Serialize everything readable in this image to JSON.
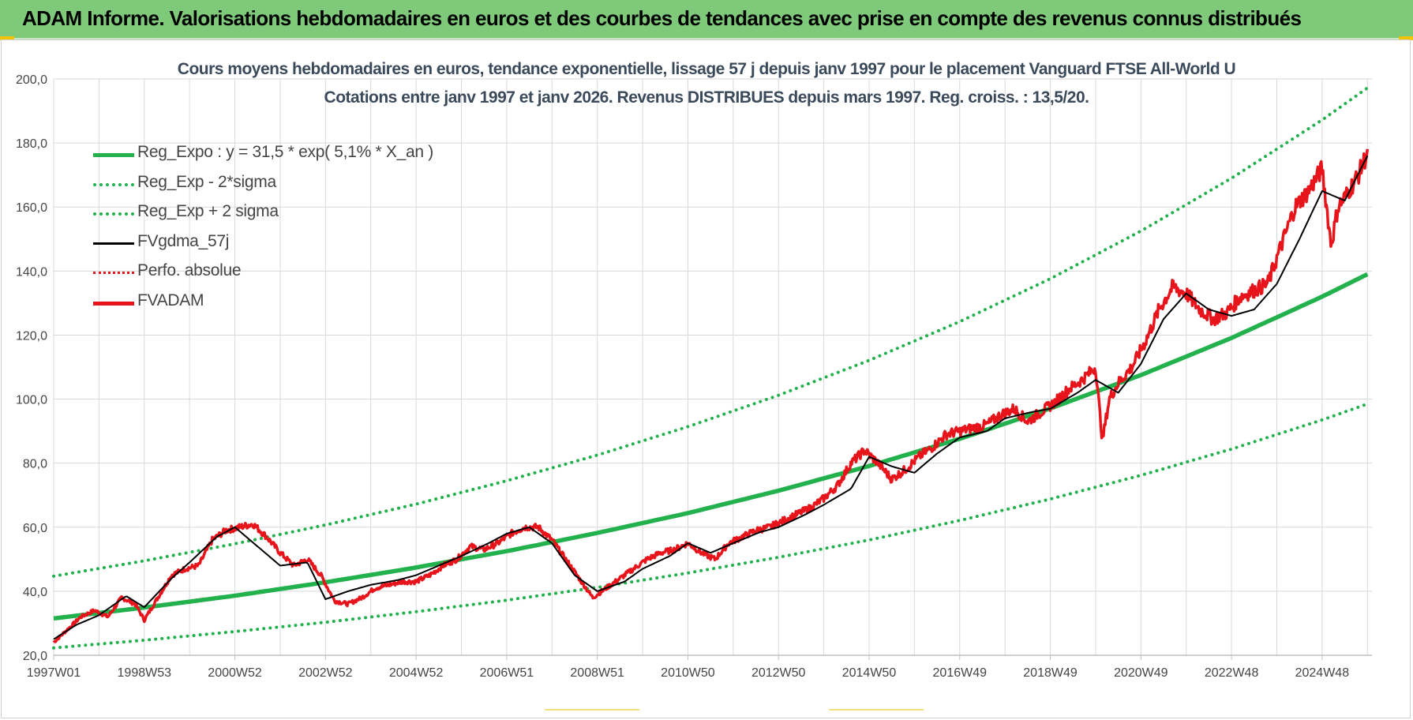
{
  "banner": {
    "title": "ADAM Informe. Valorisations hebdomadaires en euros et des courbes de tendances avec prise en compte des revenus connus distribués"
  },
  "colors": {
    "banner_bg": "#7fc97a",
    "trend_green": "#22b14c",
    "fvadam_red": "#e8141b",
    "fvgdma_black": "#000000",
    "perfo_red": "#e8141b",
    "grid": "#d9d9d9",
    "axis_text": "#444444"
  },
  "chart_data": {
    "type": "line",
    "title_line1": "Cours moyens hebdomadaires en euros, tendance exponentielle, lissage 57 j depuis janv 1997 pour le placement Vanguard FTSE All-World U",
    "title_line2": "Cotations entre janv 1997 et janv 2026. Revenus DISTRIBUES depuis mars 1997. Reg. croiss. : 13,5/20.",
    "xlabel": "",
    "ylabel": "",
    "x_range": [
      1997.0,
      2026.1
    ],
    "ylim": [
      20,
      200
    ],
    "y_ticks": [
      "20,0",
      "40,0",
      "60,0",
      "80,0",
      "100,0",
      "120,0",
      "140,0",
      "160,0",
      "180,0",
      "200,0"
    ],
    "x_ticks": [
      {
        "label": "1997W01",
        "t": 1997.0
      },
      {
        "label": "1998W53",
        "t": 1999.0
      },
      {
        "label": "2000W52",
        "t": 2001.0
      },
      {
        "label": "2002W52",
        "t": 2003.0
      },
      {
        "label": "2004W52",
        "t": 2005.0
      },
      {
        "label": "2006W51",
        "t": 2007.0
      },
      {
        "label": "2008W51",
        "t": 2009.0
      },
      {
        "label": "2010W50",
        "t": 2011.0
      },
      {
        "label": "2012W50",
        "t": 2013.0
      },
      {
        "label": "2014W50",
        "t": 2015.0
      },
      {
        "label": "2016W49",
        "t": 2017.0
      },
      {
        "label": "2018W49",
        "t": 2019.0
      },
      {
        "label": "2020W49",
        "t": 2021.0
      },
      {
        "label": "2022W48",
        "t": 2023.0
      },
      {
        "label": "2024W48",
        "t": 2025.0
      }
    ],
    "grid": true,
    "legend_position": "top-left",
    "series": [
      {
        "name": "Reg_Expo : y = 31,5 * exp( 5,1% *  X_an )",
        "style": "solid-thick",
        "color": "#22b14c",
        "x": [
          1997.0,
          1999.0,
          2001.0,
          2003.0,
          2005.0,
          2007.0,
          2009.0,
          2011.0,
          2013.0,
          2015.0,
          2017.0,
          2019.0,
          2021.0,
          2023.0,
          2025.0,
          2026.0
        ],
        "values": [
          31.5,
          34.9,
          38.6,
          42.8,
          47.4,
          52.5,
          58.2,
          64.4,
          71.4,
          79.1,
          87.6,
          97.1,
          107.5,
          119.1,
          132.0,
          139.0
        ]
      },
      {
        "name": "Reg_Exp - 2*sigma",
        "style": "dotted",
        "color": "#22b14c",
        "x": [
          1997.0,
          1999.0,
          2001.0,
          2003.0,
          2005.0,
          2007.0,
          2009.0,
          2011.0,
          2013.0,
          2015.0,
          2017.0,
          2019.0,
          2021.0,
          2023.0,
          2025.0,
          2026.0
        ],
        "values": [
          22.3,
          24.7,
          27.4,
          30.3,
          33.6,
          37.2,
          41.2,
          45.7,
          50.6,
          56.0,
          62.1,
          68.8,
          76.2,
          84.4,
          93.5,
          98.5
        ]
      },
      {
        "name": "Reg_Exp + 2 sigma",
        "style": "dotted",
        "color": "#22b14c",
        "x": [
          1997.0,
          1999.0,
          2001.0,
          2003.0,
          2005.0,
          2007.0,
          2009.0,
          2011.0,
          2013.0,
          2015.0,
          2017.0,
          2019.0,
          2021.0,
          2023.0,
          2025.0,
          2026.0
        ],
        "values": [
          44.7,
          49.5,
          54.8,
          60.7,
          67.2,
          74.5,
          82.5,
          91.4,
          101.2,
          112.1,
          124.2,
          137.6,
          152.5,
          169.0,
          187.2,
          197.2
        ]
      },
      {
        "name": "FVgdma_57j",
        "style": "solid-thin",
        "color": "#000000",
        "x": [
          1997.0,
          1997.5,
          1998.0,
          1998.6,
          1999.0,
          1999.6,
          2000.0,
          2000.6,
          2001.0,
          2001.5,
          2002.0,
          2002.6,
          2003.0,
          2003.5,
          2004.0,
          2004.6,
          2005.0,
          2005.5,
          2006.0,
          2006.6,
          2007.0,
          2007.5,
          2008.0,
          2008.5,
          2009.0,
          2009.6,
          2010.0,
          2010.6,
          2011.0,
          2011.5,
          2012.0,
          2012.6,
          2013.0,
          2013.6,
          2014.0,
          2014.6,
          2015.0,
          2015.5,
          2016.0,
          2016.5,
          2017.0,
          2017.6,
          2018.0,
          2018.6,
          2019.0,
          2019.6,
          2020.0,
          2020.5,
          2021.0,
          2021.5,
          2022.0,
          2022.5,
          2023.0,
          2023.5,
          2024.0,
          2024.5,
          2025.0,
          2025.5,
          2026.0
        ],
        "values": [
          25.0,
          29.5,
          32.5,
          38.5,
          35.0,
          44.0,
          49.0,
          57.0,
          60.0,
          54.0,
          48.0,
          49.0,
          37.5,
          40.0,
          42.0,
          43.5,
          45.0,
          48.0,
          51.0,
          55.0,
          58.0,
          60.0,
          55.0,
          45.0,
          40.0,
          43.0,
          47.0,
          51.0,
          55.0,
          52.0,
          55.0,
          58.5,
          60.0,
          64.0,
          67.0,
          72.0,
          82.0,
          79.0,
          77.0,
          83.0,
          88.0,
          90.0,
          94.0,
          96.0,
          97.0,
          102.0,
          106.0,
          102.0,
          111.0,
          125.0,
          133.0,
          128.0,
          126.0,
          128.0,
          136.0,
          150.0,
          165.0,
          162.0,
          176.0
        ]
      },
      {
        "name": "Perfo. absolue",
        "style": "dotted",
        "color": "#e8141b",
        "x": [],
        "values": []
      },
      {
        "name": "FVADAM",
        "style": "solid-thick",
        "color": "#e8141b",
        "x": [
          1997.0,
          1997.3,
          1997.6,
          1997.9,
          1998.2,
          1998.5,
          1998.8,
          1999.0,
          1999.3,
          1999.6,
          1999.9,
          2000.2,
          2000.5,
          2000.8,
          2001.1,
          2001.4,
          2001.7,
          2002.0,
          2002.3,
          2002.6,
          2002.9,
          2003.2,
          2003.5,
          2003.8,
          2004.1,
          2004.4,
          2004.7,
          2005.0,
          2005.3,
          2005.6,
          2005.9,
          2006.2,
          2006.5,
          2006.8,
          2007.1,
          2007.4,
          2007.7,
          2008.0,
          2008.3,
          2008.6,
          2008.9,
          2009.2,
          2009.5,
          2009.8,
          2010.1,
          2010.4,
          2010.7,
          2011.0,
          2011.3,
          2011.6,
          2011.9,
          2012.2,
          2012.5,
          2012.8,
          2013.1,
          2013.4,
          2013.7,
          2014.0,
          2014.3,
          2014.6,
          2014.9,
          2015.2,
          2015.5,
          2015.8,
          2016.1,
          2016.4,
          2016.7,
          2017.0,
          2017.3,
          2017.6,
          2017.9,
          2018.2,
          2018.5,
          2018.8,
          2019.1,
          2019.4,
          2019.7,
          2020.0,
          2020.15,
          2020.3,
          2020.5,
          2020.8,
          2021.1,
          2021.4,
          2021.7,
          2022.0,
          2022.3,
          2022.6,
          2022.9,
          2023.2,
          2023.5,
          2023.8,
          2024.1,
          2024.4,
          2024.7,
          2025.0,
          2025.2,
          2025.35,
          2025.5,
          2025.8,
          2026.0
        ],
        "values": [
          24.0,
          28.0,
          32.0,
          34.0,
          32.0,
          38.0,
          36.0,
          31.0,
          38.0,
          45.0,
          47.0,
          48.0,
          56.0,
          59.0,
          60.0,
          61.0,
          57.0,
          52.0,
          48.0,
          50.0,
          45.0,
          37.0,
          36.0,
          38.0,
          41.0,
          42.0,
          43.0,
          43.0,
          45.0,
          48.0,
          50.0,
          54.0,
          53.0,
          55.0,
          58.0,
          60.0,
          60.0,
          56.0,
          50.0,
          44.0,
          38.0,
          41.0,
          44.0,
          47.0,
          50.0,
          52.0,
          53.0,
          55.0,
          52.0,
          50.0,
          55.0,
          57.0,
          59.0,
          60.0,
          62.0,
          64.0,
          66.0,
          69.0,
          73.0,
          80.0,
          84.0,
          80.0,
          75.0,
          78.0,
          82.0,
          85.0,
          89.0,
          90.0,
          91.0,
          92.0,
          95.0,
          97.0,
          93.0,
          96.0,
          99.0,
          103.0,
          106.0,
          110.0,
          87.0,
          100.0,
          105.0,
          110.0,
          118.0,
          128.0,
          135.0,
          133.0,
          128.0,
          125.0,
          127.0,
          132.0,
          134.0,
          136.0,
          148.0,
          160.0,
          165.0,
          172.0,
          148.0,
          160.0,
          163.0,
          170.0,
          177.0
        ]
      }
    ]
  }
}
